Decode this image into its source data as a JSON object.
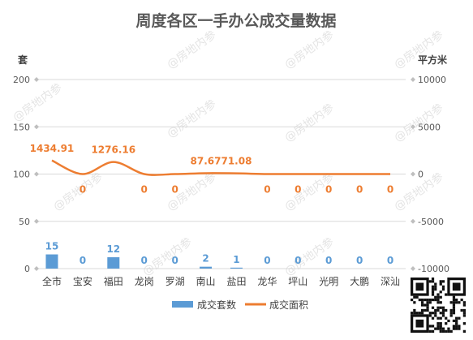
{
  "chart_data": {
    "type": "bar",
    "title": "周度各区一手办公成交量数据",
    "categories": [
      "全市",
      "宝安",
      "福田",
      "龙岗",
      "罗湖",
      "南山",
      "盐田",
      "龙华",
      "坪山",
      "光明",
      "大鹏",
      "深汕"
    ],
    "series": [
      {
        "name": "成交套数",
        "type": "bar",
        "axis": "left",
        "color": "#5b9bd5",
        "values": [
          15,
          0,
          12,
          0,
          0,
          2,
          1,
          0,
          0,
          0,
          0,
          0
        ],
        "labels": [
          "15",
          "0",
          "12",
          "0",
          "0",
          "2",
          "1",
          "0",
          "0",
          "0",
          "0",
          "0"
        ]
      },
      {
        "name": "成交面积",
        "type": "line",
        "axis": "right",
        "color": "#ed7d31",
        "values": [
          1434.91,
          0,
          1276.16,
          0,
          0,
          87.67,
          71.08,
          0,
          0,
          0,
          0,
          0
        ],
        "labels": [
          "1434.91",
          "0",
          "1276.16",
          "0",
          "0",
          "87.67",
          "71.08",
          "0",
          "0",
          "0",
          "0",
          "0"
        ]
      }
    ],
    "y_left": {
      "label": "套",
      "ylim": [
        0,
        200
      ],
      "ticks": [
        0,
        50,
        100,
        150,
        200
      ],
      "tick_labels": [
        "0",
        "50",
        "100",
        "150",
        "200"
      ]
    },
    "y_right": {
      "label": "平方米",
      "ylim": [
        -10000,
        10000
      ],
      "ticks": [
        -10000,
        -5000,
        0,
        5000,
        10000
      ],
      "tick_labels": [
        "-10000",
        "-5000",
        "0",
        "5000",
        "10000"
      ]
    },
    "grid": true,
    "legend": "bottom"
  },
  "watermark": "@房地内参"
}
